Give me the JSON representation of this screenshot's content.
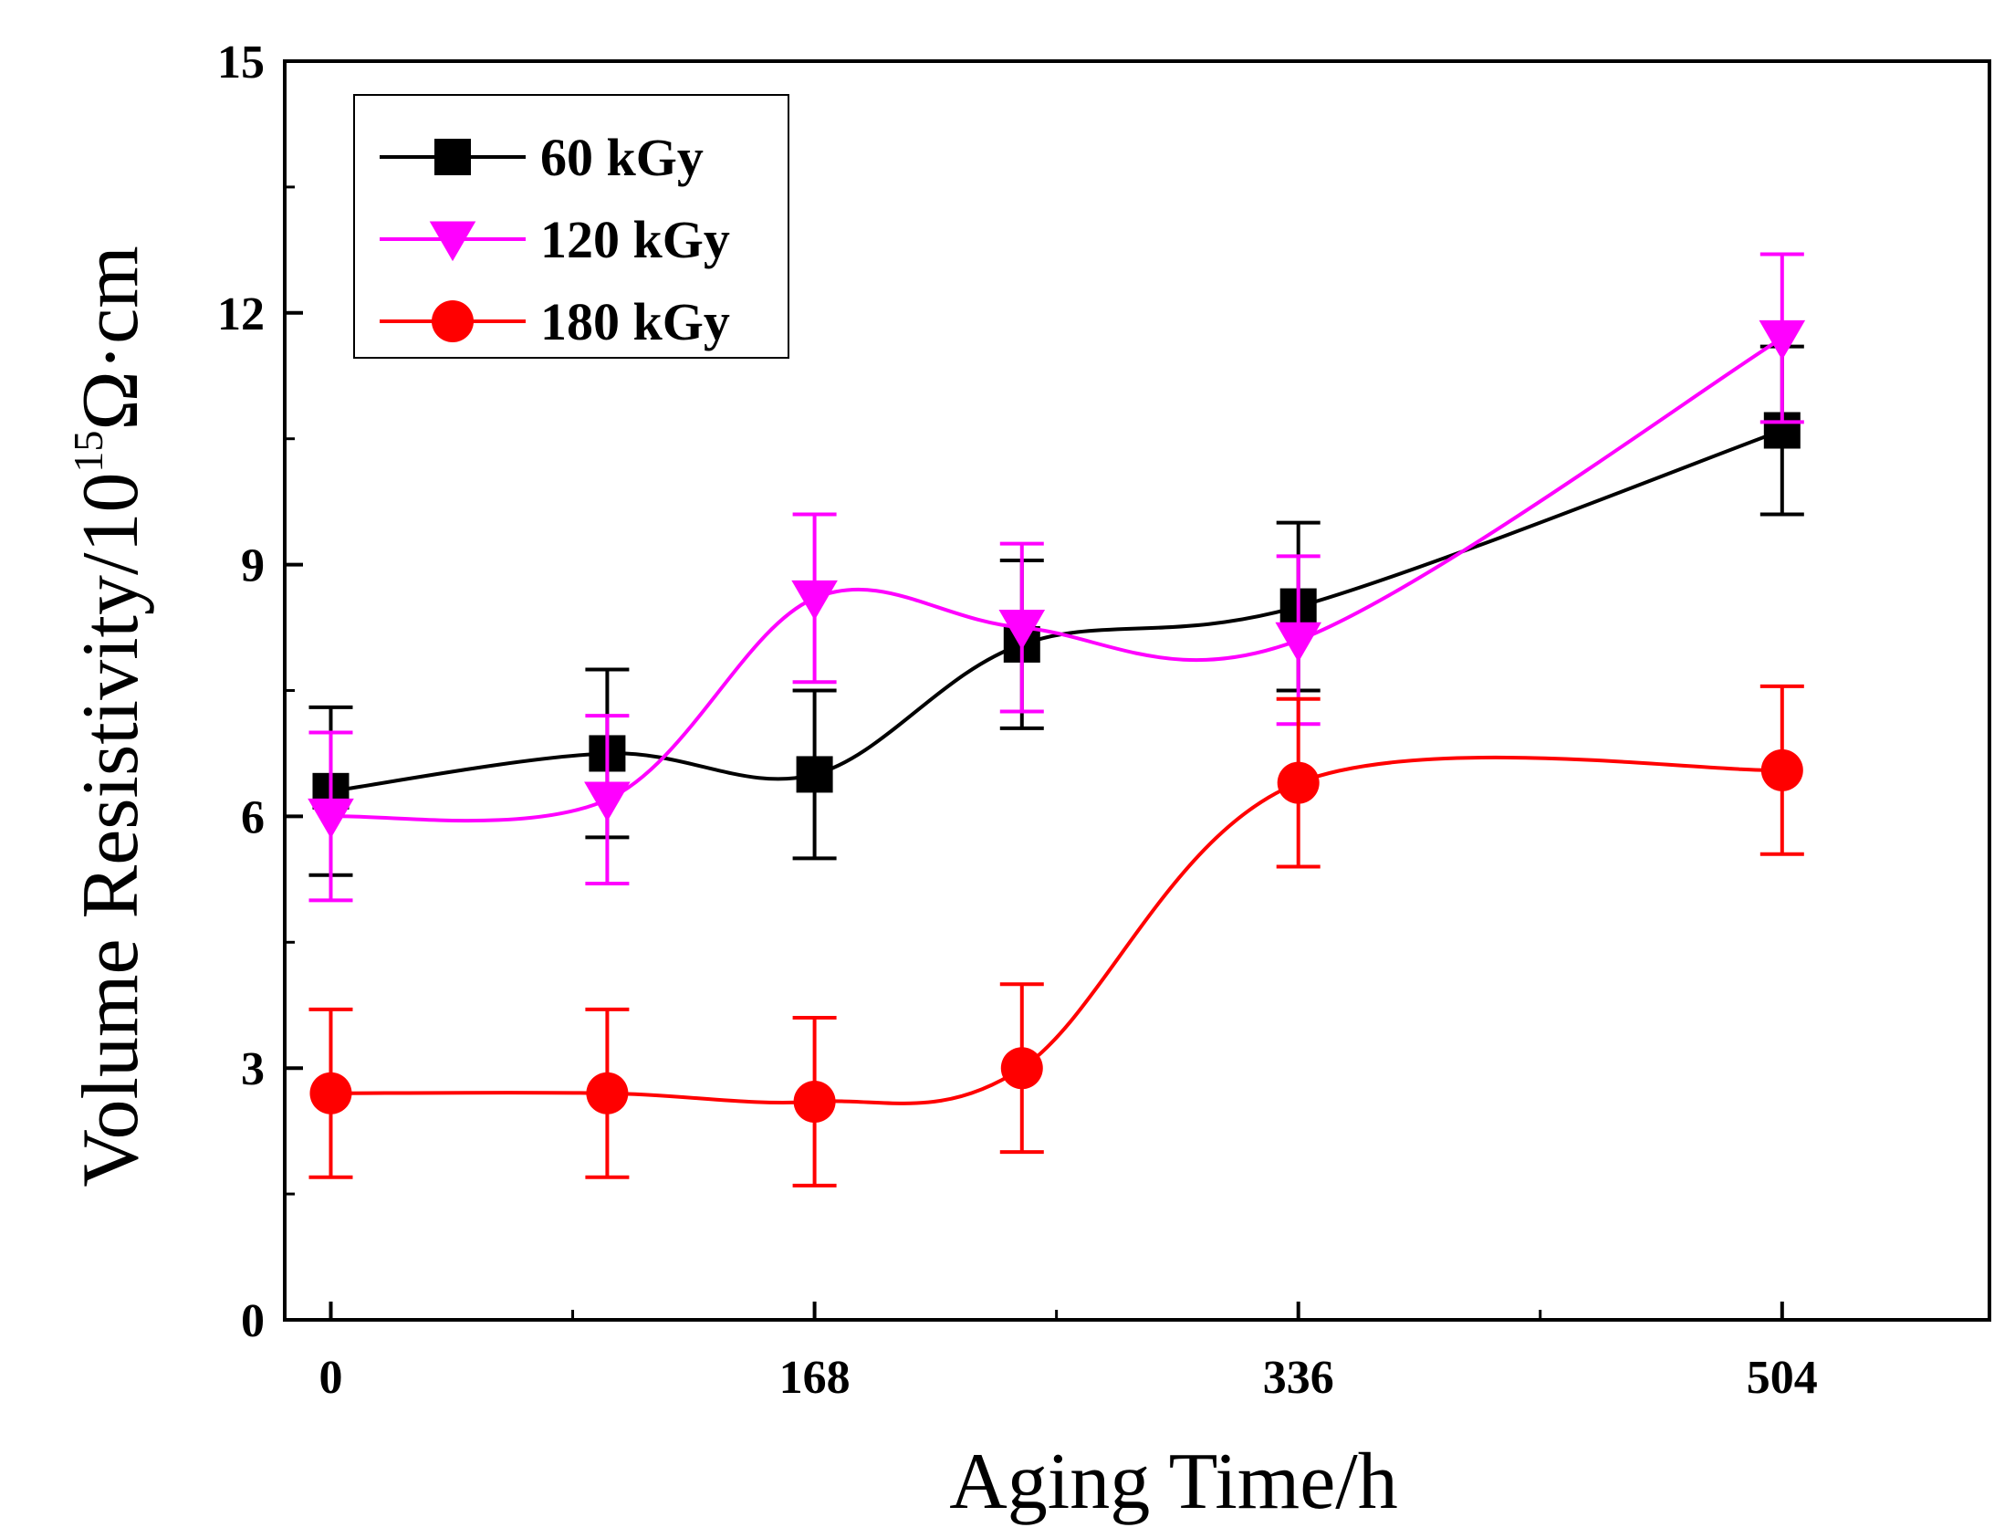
{
  "chart_data": {
    "type": "line",
    "title": "",
    "xlabel": "Aging Time/h",
    "ylabel": {
      "base": "Volume Resistivity/10",
      "exponent": "15",
      "unit": "Ω·cm"
    },
    "xlim": [
      -16,
      576
    ],
    "ylim": [
      0,
      15
    ],
    "x_ticks": [
      0,
      168,
      336,
      504
    ],
    "x_tick_labels": [
      "0",
      "168",
      "336",
      "504"
    ],
    "x_minor_ticks": [
      84,
      252,
      420
    ],
    "y_ticks": [
      0,
      3,
      6,
      9,
      12,
      15
    ],
    "y_tick_labels": [
      "0",
      "3",
      "6",
      "9",
      "12",
      "15"
    ],
    "y_minor_ticks": [
      1.5,
      4.5,
      7.5,
      10.5,
      13.5
    ],
    "grid": false,
    "legend_position": "top-left",
    "x": [
      0,
      96,
      168,
      240,
      336,
      504
    ],
    "series": [
      {
        "name": "60 kGy",
        "color": "#000000",
        "marker": "square",
        "values": [
          6.3,
          6.75,
          6.5,
          8.05,
          8.5,
          10.6
        ],
        "errors": [
          1.0,
          1.0,
          1.0,
          1.0,
          1.0,
          1.0
        ]
      },
      {
        "name": "120 kGy",
        "color": "#ff00ff",
        "marker": "triangle-down",
        "values": [
          6.0,
          6.2,
          8.6,
          8.25,
          8.1,
          11.7
        ],
        "errors": [
          1.0,
          1.0,
          1.0,
          1.0,
          1.0,
          1.0
        ]
      },
      {
        "name": "180 kGy",
        "color": "#ff0000",
        "marker": "circle",
        "values": [
          2.7,
          2.7,
          2.6,
          3.0,
          6.4,
          6.55
        ],
        "errors": [
          1.0,
          1.0,
          1.0,
          1.0,
          1.0,
          1.0
        ]
      }
    ]
  }
}
